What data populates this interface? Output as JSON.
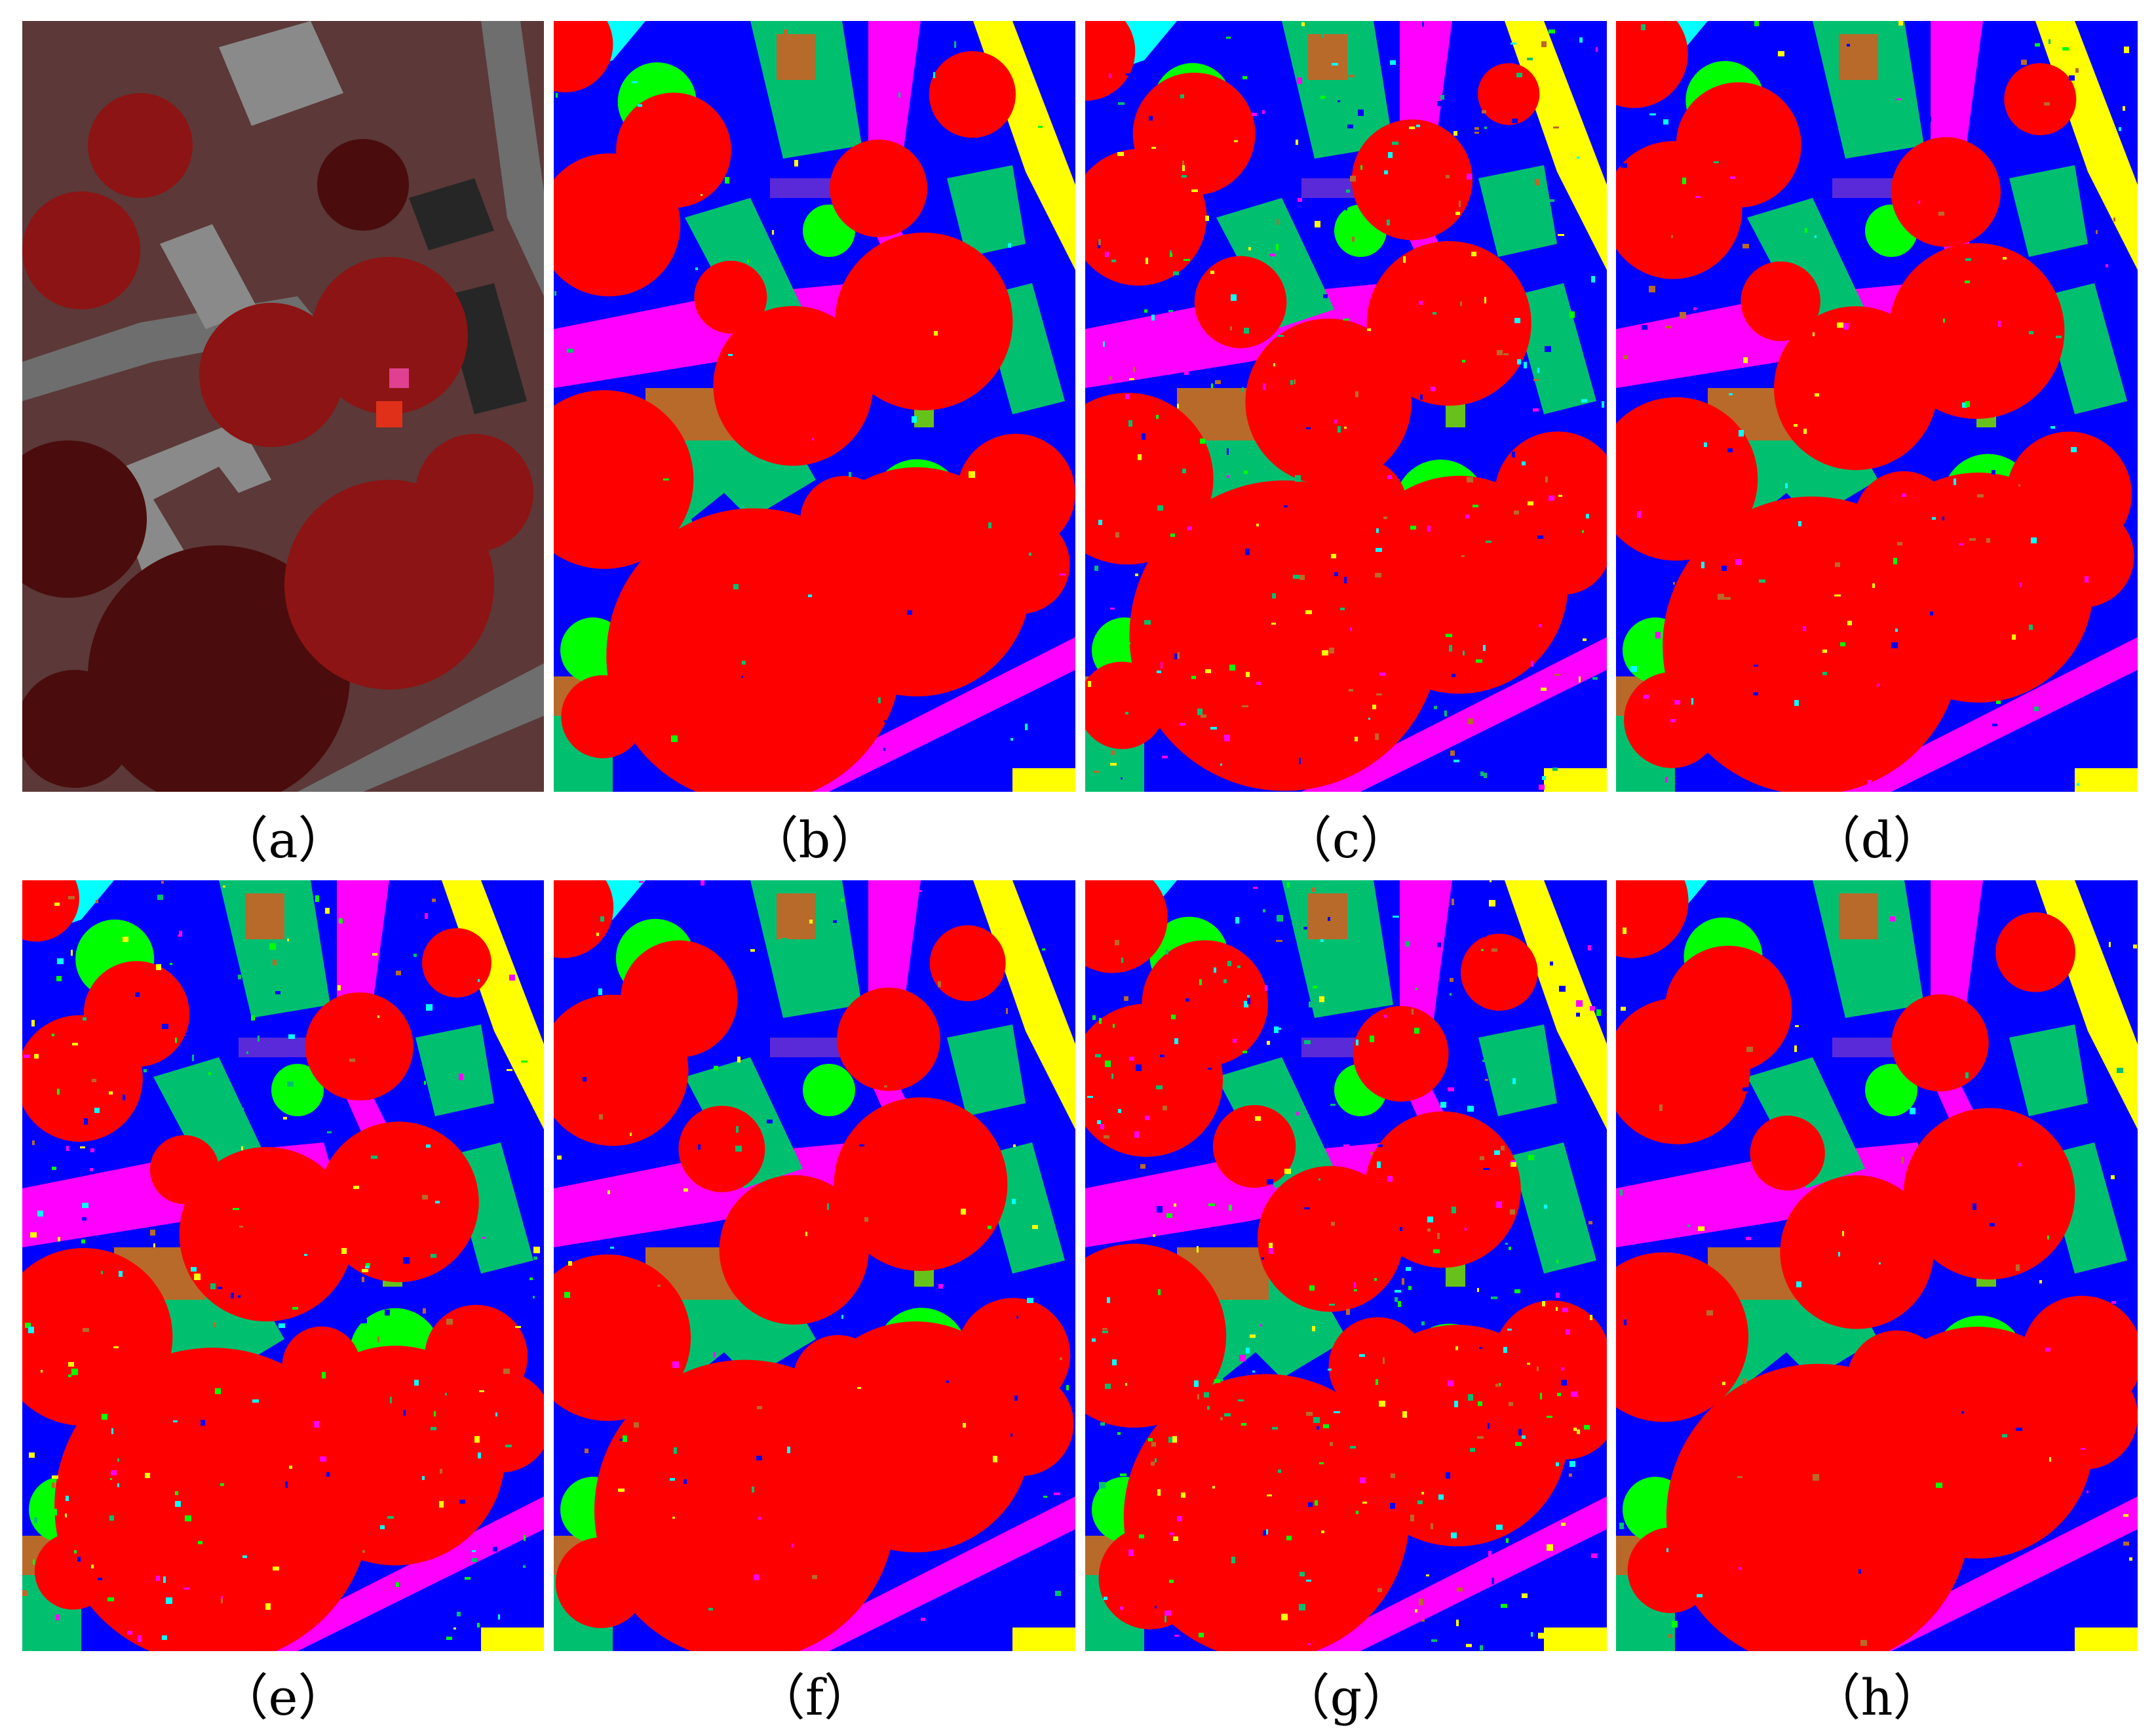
{
  "panels": [
    {
      "caption": "（a）",
      "kind": "false-color aerial image"
    },
    {
      "caption": "（b）",
      "kind": "classification map"
    },
    {
      "caption": "（c）",
      "kind": "classification map"
    },
    {
      "caption": "（d）",
      "kind": "classification map"
    },
    {
      "caption": "（e）",
      "kind": "classification map"
    },
    {
      "caption": "（f）",
      "kind": "classification map"
    },
    {
      "caption": "（g）",
      "kind": "classification map"
    },
    {
      "caption": "（h）",
      "kind": "classification map"
    }
  ],
  "class_colors": {
    "trees": "#ff0000",
    "asphalt": "#0000ff",
    "roofs": "#00c070",
    "meadows": "#00ff00",
    "shadows": "#ff00ff",
    "soil": "#ffff00",
    "bricks": "#b86a2a",
    "water": "#00ffff",
    "bitumen": "#5a2ad8",
    "metal": "#66c21a"
  },
  "aerial_colors": {
    "vegetation": "#8c1414",
    "dark_vegetation": "#4a0c0c",
    "ground": "#5c3838",
    "road": "#6e6e6e",
    "roof": "#8a8a8a",
    "shadow": "#262626"
  }
}
